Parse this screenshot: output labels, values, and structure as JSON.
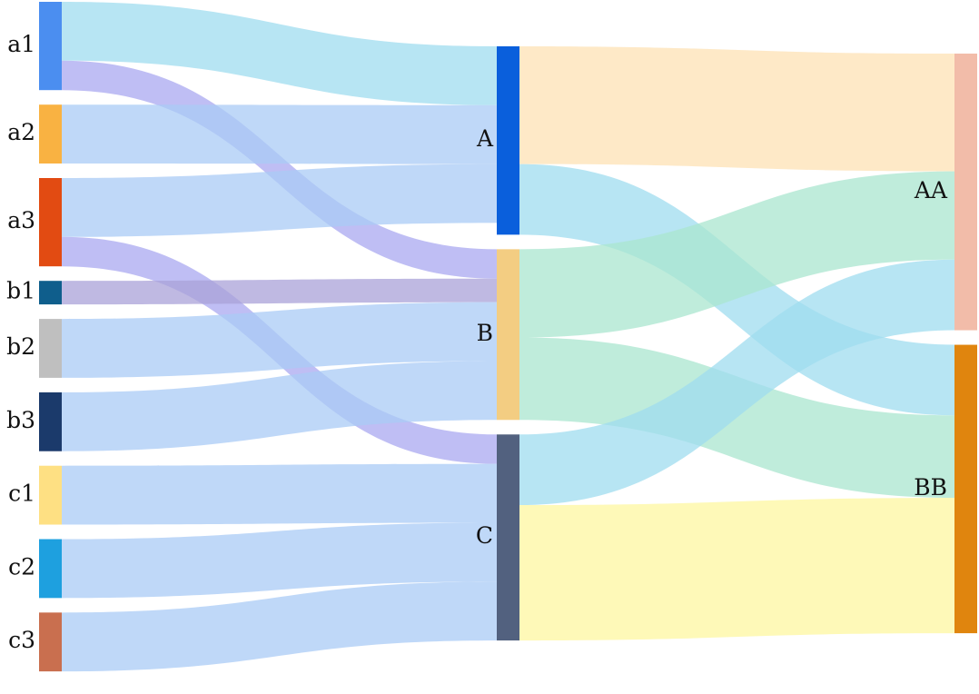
{
  "chart_data": {
    "type": "sankey",
    "title": "",
    "node_columns": [
      [
        "a1",
        "a2",
        "a3",
        "b1",
        "b2",
        "b3",
        "c1",
        "c2",
        "c3"
      ],
      [
        "A",
        "B",
        "C"
      ],
      [
        "AA",
        "BB"
      ]
    ],
    "nodes": [
      {
        "id": "a1",
        "label": "a1",
        "color": "#4b8ef0"
      },
      {
        "id": "a2",
        "label": "a2",
        "color": "#f9b242"
      },
      {
        "id": "a3",
        "label": "a3",
        "color": "#e24b12"
      },
      {
        "id": "b1",
        "label": "b1",
        "color": "#0f5e8c"
      },
      {
        "id": "b2",
        "label": "b2",
        "color": "#bfbfbf"
      },
      {
        "id": "b3",
        "label": "b3",
        "color": "#1b3a6b"
      },
      {
        "id": "c1",
        "label": "c1",
        "color": "#fee083"
      },
      {
        "id": "c2",
        "label": "c2",
        "color": "#1ea0df"
      },
      {
        "id": "c3",
        "label": "c3",
        "color": "#c96f4f"
      },
      {
        "id": "A",
        "label": "A",
        "color": "#0a5fdc"
      },
      {
        "id": "B",
        "label": "B",
        "color": "#f3cd82"
      },
      {
        "id": "C",
        "label": "C",
        "color": "#52617f"
      },
      {
        "id": "AA",
        "label": "AA",
        "color": "#f2bca9"
      },
      {
        "id": "BB",
        "label": "BB",
        "color": "#e0850e"
      }
    ],
    "links": [
      {
        "source": "a1",
        "target": "A",
        "value": 4,
        "color": "#9fdcef"
      },
      {
        "source": "a1",
        "target": "B",
        "value": 2,
        "color": "#a9a8f0"
      },
      {
        "source": "a2",
        "target": "A",
        "value": 4,
        "color": "#a9cbf5"
      },
      {
        "source": "a3",
        "target": "A",
        "value": 4,
        "color": "#a9cbf5"
      },
      {
        "source": "a3",
        "target": "C",
        "value": 2,
        "color": "#a9a8f0"
      },
      {
        "source": "b1",
        "target": "B",
        "value": 1.6,
        "color": "#a9a2d8"
      },
      {
        "source": "b2",
        "target": "B",
        "value": 4,
        "color": "#a9cbf5"
      },
      {
        "source": "b3",
        "target": "B",
        "value": 4,
        "color": "#a9cbf5"
      },
      {
        "source": "c1",
        "target": "C",
        "value": 4,
        "color": "#a9cbf5"
      },
      {
        "source": "c2",
        "target": "C",
        "value": 4,
        "color": "#a9cbf5"
      },
      {
        "source": "c3",
        "target": "C",
        "value": 4,
        "color": "#a9cbf5"
      },
      {
        "source": "A",
        "target": "AA",
        "value": 8,
        "color": "#fde2b4"
      },
      {
        "source": "A",
        "target": "BB",
        "value": 4.8,
        "color": "#9fdcef"
      },
      {
        "source": "B",
        "target": "AA",
        "value": 6,
        "color": "#a9e6cf"
      },
      {
        "source": "B",
        "target": "BB",
        "value": 5.6,
        "color": "#a9e6cf"
      },
      {
        "source": "C",
        "target": "AA",
        "value": 4.8,
        "color": "#9fdcef"
      },
      {
        "source": "C",
        "target": "BB",
        "value": 9.2,
        "color": "#fdf7a0"
      }
    ]
  }
}
